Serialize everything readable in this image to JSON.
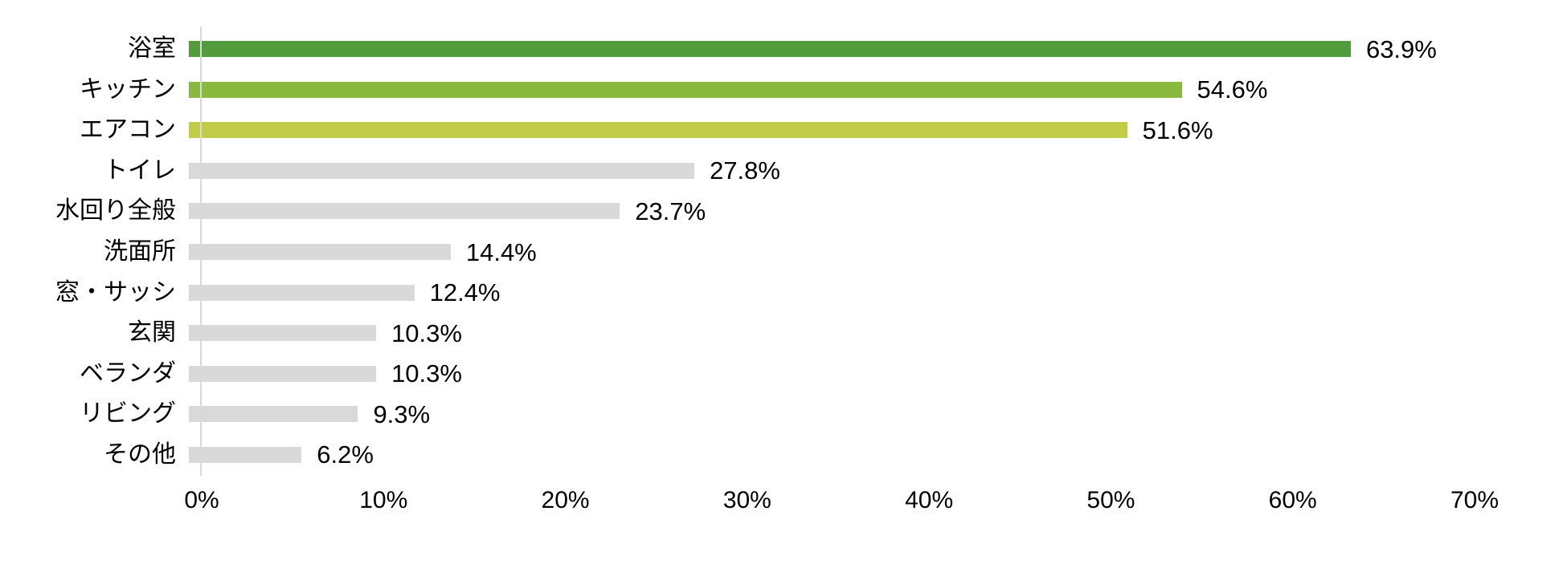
{
  "chart_data": {
    "type": "bar",
    "orientation": "horizontal",
    "title": "",
    "categories": [
      "浴室",
      "キッチン",
      "エアコン",
      "トイレ",
      "水回り全般",
      "洗面所",
      "窓・サッシ",
      "玄関",
      "ベランダ",
      "リビング",
      "その他"
    ],
    "values": [
      63.9,
      54.6,
      51.6,
      27.8,
      23.7,
      14.4,
      12.4,
      10.3,
      10.3,
      9.3,
      6.2
    ],
    "value_labels": [
      "63.9%",
      "54.6%",
      "51.6%",
      "27.8%",
      "23.7%",
      "14.4%",
      "12.4%",
      "10.3%",
      "10.3%",
      "9.3%",
      "6.2%"
    ],
    "bar_colors": [
      "#529c3d",
      "#8ab93f",
      "#c1cd48",
      "#d9d9d9",
      "#d9d9d9",
      "#d9d9d9",
      "#d9d9d9",
      "#d9d9d9",
      "#d9d9d9",
      "#d9d9d9",
      "#d9d9d9"
    ],
    "x_ticks": [
      "0%",
      "10%",
      "20%",
      "30%",
      "40%",
      "50%",
      "60%",
      "70%"
    ],
    "xlim": [
      0,
      70
    ],
    "grid": false,
    "legend": "none",
    "xlabel": "",
    "ylabel": "",
    "axis_line_color": "#d9d9d9",
    "text_color": "#000000",
    "background_color": "#ffffff"
  }
}
